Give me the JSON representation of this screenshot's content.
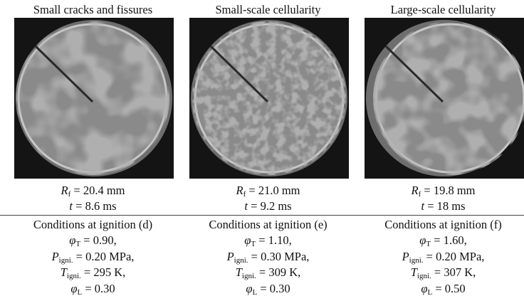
{
  "panels": [
    {
      "title": "Small cracks and fissures",
      "radius": {
        "symbol": "R",
        "sub": "f",
        "text": "= 20.4 mm"
      },
      "time": {
        "symbol": "t",
        "text": "= 8.6 ms"
      },
      "conditions": {
        "heading": "Conditions at ignition (d)",
        "lines": [
          {
            "symbol": "φ",
            "sub": "T",
            "text": "= 0.90,"
          },
          {
            "symbol": "P",
            "sub": "igni.",
            "text": "= 0.20 MPa,"
          },
          {
            "symbol": "T",
            "sub": "igni.",
            "text": "= 295 K,"
          },
          {
            "symbol": "φ",
            "sub": "L",
            "text": "= 0.30"
          }
        ]
      }
    },
    {
      "title": "Small-scale cellularity",
      "radius": {
        "symbol": "R",
        "sub": "f",
        "text": "= 21.0 mm"
      },
      "time": {
        "symbol": "t",
        "text": "= 9.2 ms"
      },
      "conditions": {
        "heading": "Conditions at ignition (e)",
        "lines": [
          {
            "symbol": "φ",
            "sub": "T",
            "text": "= 1.10,"
          },
          {
            "symbol": "P",
            "sub": "igni.",
            "text": "= 0.30 MPa,"
          },
          {
            "symbol": "T",
            "sub": "igni.",
            "text": "= 309 K,"
          },
          {
            "symbol": "φ",
            "sub": "L",
            "text": "= 0.30"
          }
        ]
      }
    },
    {
      "title": "Large-scale cellularity",
      "radius": {
        "symbol": "R",
        "sub": "f",
        "text": "= 19.8 mm"
      },
      "time": {
        "symbol": "t",
        "text": "= 18 ms"
      },
      "conditions": {
        "heading": "Conditions at ignition (f)",
        "lines": [
          {
            "symbol": "φ",
            "sub": "T",
            "text": "= 1.60,"
          },
          {
            "symbol": "P",
            "sub": "igni.",
            "text": "= 0.20 MPa,"
          },
          {
            "symbol": "T",
            "sub": "igni.",
            "text": "= 307 K,"
          },
          {
            "symbol": "φ",
            "sub": "L",
            "text": "= 0.50"
          }
        ]
      }
    }
  ]
}
